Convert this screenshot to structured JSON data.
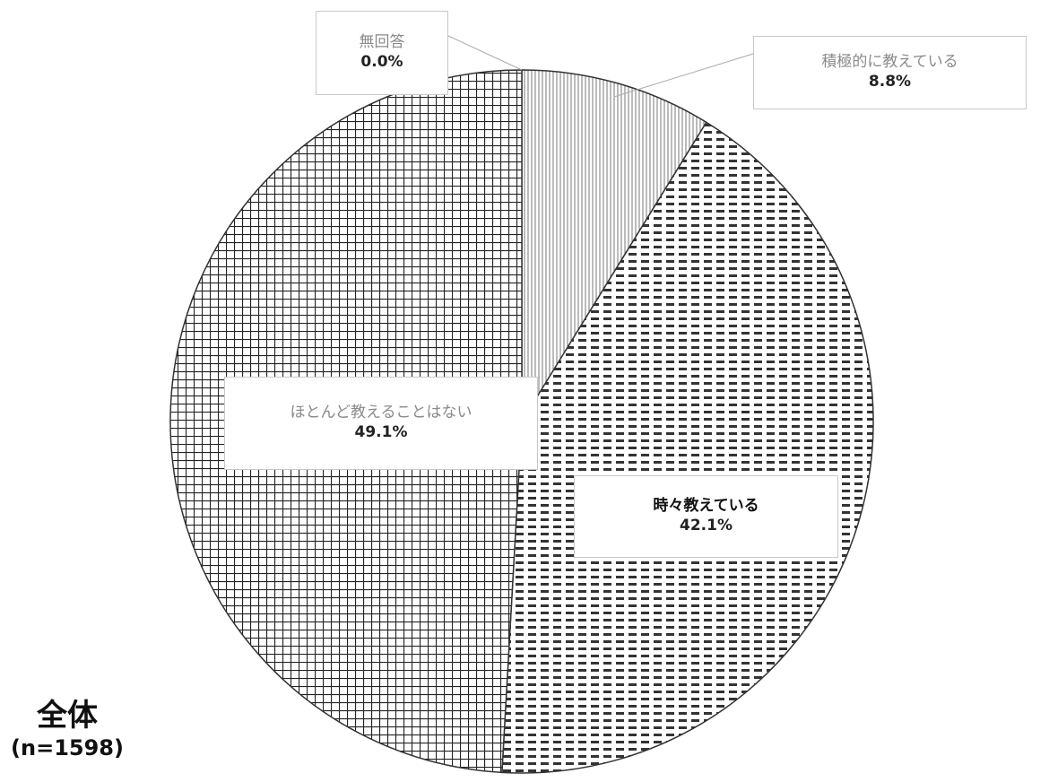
{
  "chart_data": {
    "type": "pie",
    "title": "",
    "subtitle": "",
    "slices": [
      {
        "label": "無回答",
        "value": 0.0,
        "display": "0.0%",
        "pattern": "none"
      },
      {
        "label": "積極的に教えている",
        "value": 8.8,
        "display": "8.8%",
        "pattern": "vertical-lines"
      },
      {
        "label": "時々教えている",
        "value": 42.1,
        "display": "42.1%",
        "pattern": "dashes"
      },
      {
        "label": "ほとんど教えることはない",
        "value": 49.1,
        "display": "49.1%",
        "pattern": "grid"
      }
    ],
    "start_angle_deg": 0,
    "direction": "clockwise",
    "legend": "none",
    "labels": "callouts"
  },
  "group": {
    "title": "全体",
    "n_label": "(n=1598)"
  },
  "colors": {
    "outline": "#333333",
    "pattern_ink": "#555555",
    "callout_border": "#c8c8c8",
    "muted_text": "#8a8a8a"
  }
}
